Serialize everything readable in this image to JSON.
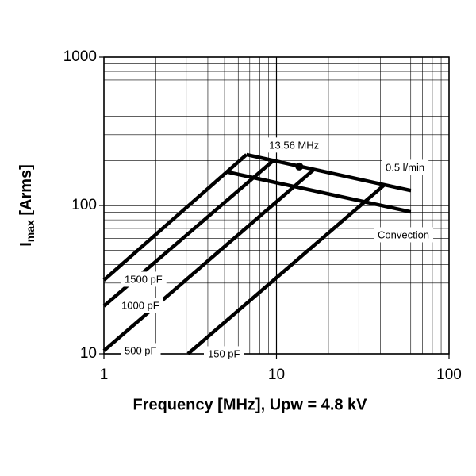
{
  "chart_data": {
    "type": "line",
    "xlabel": "Frequency [MHz], Upw = 4.8 kV",
    "ylabel": {
      "main": "I",
      "sub": "max",
      "rest": " [Arms]"
    },
    "xscale": "log",
    "yscale": "log",
    "xlim": [
      1,
      100
    ],
    "ylim": [
      10,
      1000
    ],
    "xticks": [
      1,
      10,
      100
    ],
    "yticks": [
      10,
      100,
      1000
    ],
    "grid": true,
    "color": "#000000",
    "series": [
      {
        "name": "1500 pF",
        "x": [
          1,
          6.7
        ],
        "values": [
          31.4,
          220
        ]
      },
      {
        "name": "1000 pF",
        "x": [
          1,
          9.7
        ],
        "values": [
          21,
          203
        ]
      },
      {
        "name": "500 pF",
        "x": [
          1,
          16.5
        ],
        "values": [
          10.5,
          175
        ]
      },
      {
        "name": "150 pF",
        "x": [
          3.07,
          42
        ],
        "values": [
          10,
          137
        ]
      },
      {
        "name": "0.5 l/min",
        "x": [
          6.7,
          60
        ],
        "values": [
          220,
          126
        ]
      },
      {
        "name": "Convection",
        "x": [
          5.2,
          60
        ],
        "values": [
          168,
          90.6
        ]
      }
    ],
    "point": {
      "label": "13.56 MHz",
      "x": 13.56,
      "value": 183
    }
  }
}
